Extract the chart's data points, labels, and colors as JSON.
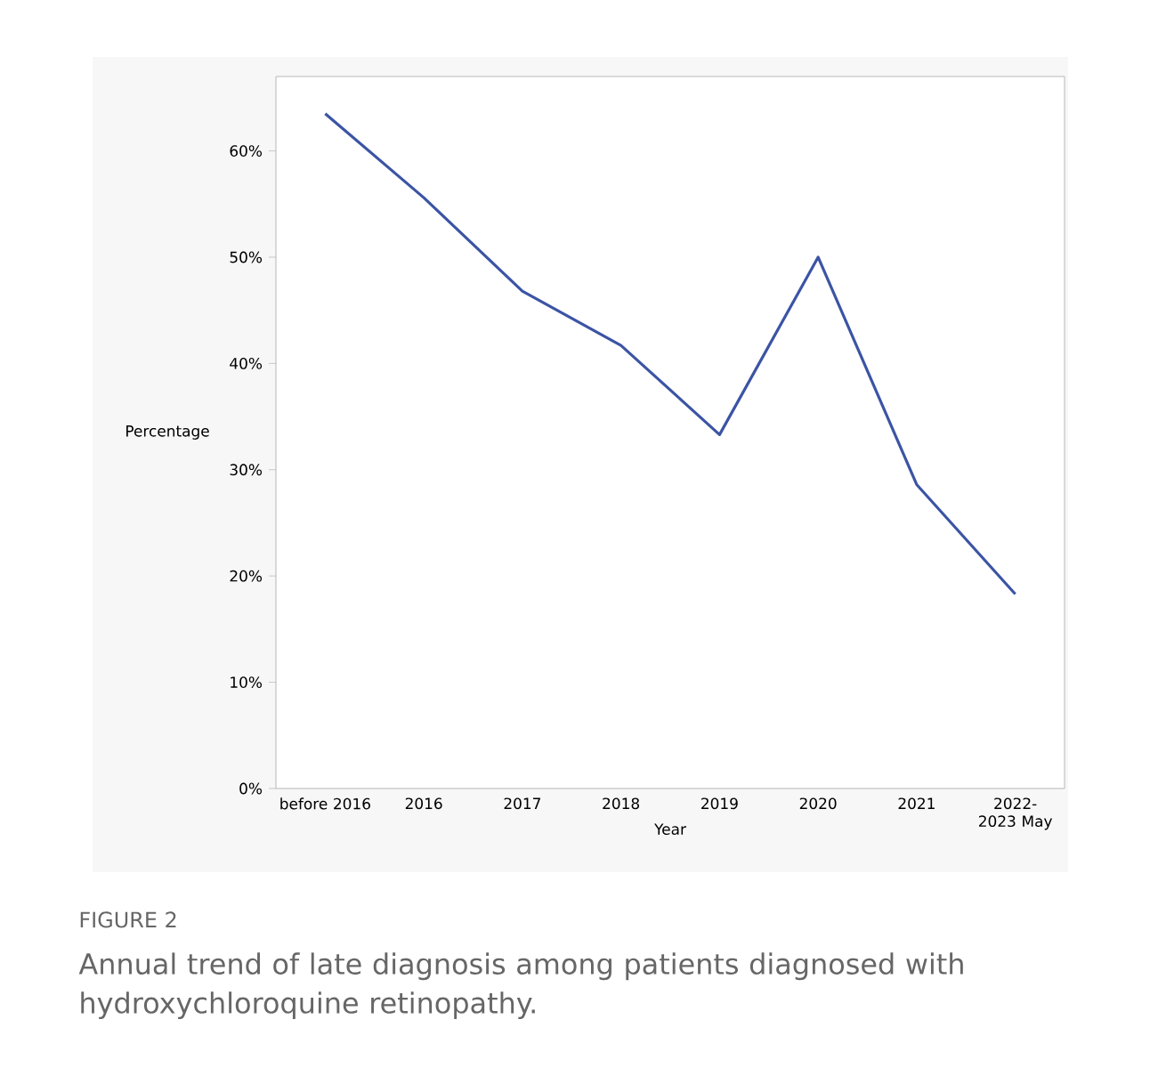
{
  "chart_data": {
    "type": "line",
    "title": "FIGURE 2",
    "subtitle": "Annual trend of late diagnosis among patients diagnosed with hydroxychloroquine retinopathy.",
    "xlabel": "Year",
    "ylabel": "Percentage",
    "categories": [
      "before 2016",
      "2016",
      "2017",
      "2018",
      "2019",
      "2020",
      "2021",
      "2022-2023 May"
    ],
    "series": [
      {
        "color": "#3b54a4",
        "values": [
          63.5,
          55.6,
          46.8,
          41.7,
          33.3,
          50,
          28.6,
          18.3
        ]
      }
    ],
    "ylim": [
      0,
      67
    ],
    "yticks": [
      {
        "value": 0,
        "label": "0%"
      },
      {
        "value": 10,
        "label": "10%"
      },
      {
        "value": 20,
        "label": "20%"
      },
      {
        "value": 30,
        "label": "30%"
      },
      {
        "value": 40,
        "label": "40%"
      },
      {
        "value": 50,
        "label": "50%"
      },
      {
        "value": 60,
        "label": "60%"
      }
    ],
    "grid": false,
    "marker": "none",
    "line_style": "solid"
  }
}
